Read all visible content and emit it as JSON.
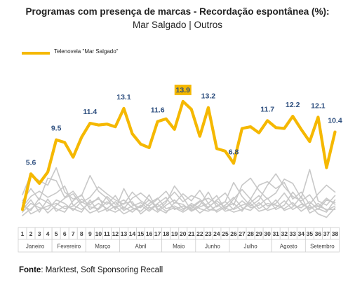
{
  "title": "Programas com presença de marcas - Recordação espontânea (%):",
  "subtitle": "Mar Salgado | Outros",
  "legend_label": "Telenovela \"Mar Salgado\"",
  "source_prefix": "Fonte",
  "source_text": ": Marktest, Soft Sponsoring Recall",
  "colors": {
    "main": "#f5b800",
    "others": "#c8c8c8",
    "label": "#2e4f7f",
    "highlight_bg": "#f5b800"
  },
  "chart_data": {
    "type": "line",
    "title": "Programas com presença de marcas - Recordação espontânea (%):",
    "subtitle": "Mar Salgado | Outros",
    "x": [
      "1",
      "2",
      "3",
      "4",
      "5",
      "6",
      "7",
      "8",
      "9",
      "10",
      "11",
      "12",
      "13",
      "14",
      "15",
      "16",
      "17",
      "18",
      "19",
      "20",
      "21",
      "22",
      "23",
      "24",
      "25",
      "26",
      "27",
      "28",
      "29",
      "30",
      "31",
      "32",
      "33",
      "34",
      "35",
      "36",
      "37",
      "38"
    ],
    "month_groups": [
      {
        "label": "Janeiro",
        "start": 1,
        "end": 4
      },
      {
        "label": "Fevereiro",
        "start": 5,
        "end": 8
      },
      {
        "label": "Março",
        "start": 9,
        "end": 12
      },
      {
        "label": "Abril",
        "start": 13,
        "end": 17
      },
      {
        "label": "Maio",
        "start": 18,
        "end": 21
      },
      {
        "label": "Junho",
        "start": 22,
        "end": 25
      },
      {
        "label": "Julho",
        "start": 26,
        "end": 30
      },
      {
        "label": "Agosto",
        "start": 31,
        "end": 34
      },
      {
        "label": "Setembro",
        "start": 35,
        "end": 38
      }
    ],
    "ylim": [
      0,
      15.5
    ],
    "grid": false,
    "legend": "top-left",
    "series": [
      {
        "name": "Telenovela \"Mar Salgado\"",
        "role": "main",
        "values": [
          1.5,
          5.6,
          4.5,
          5.8,
          9.5,
          9.2,
          7.5,
          9.8,
          11.4,
          11.2,
          11.3,
          11.0,
          13.1,
          10.2,
          9.0,
          8.6,
          11.6,
          11.9,
          10.7,
          13.9,
          13.0,
          9.9,
          13.2,
          8.5,
          8.2,
          6.8,
          10.8,
          11.0,
          10.3,
          11.7,
          10.9,
          10.8,
          12.2,
          10.7,
          9.3,
          12.1,
          6.3,
          10.4
        ],
        "data_labels": [
          {
            "x": "2",
            "value": "5.6"
          },
          {
            "x": "5",
            "value": "9.5"
          },
          {
            "x": "9",
            "value": "11.4"
          },
          {
            "x": "13",
            "value": "13.1"
          },
          {
            "x": "17",
            "value": "11.6"
          },
          {
            "x": "20",
            "value": "13.9",
            "highlight": true
          },
          {
            "x": "23",
            "value": "13.2"
          },
          {
            "x": "26",
            "value": "6.8"
          },
          {
            "x": "30",
            "value": "11.7"
          },
          {
            "x": "33",
            "value": "12.2"
          },
          {
            "x": "36",
            "value": "12.1"
          },
          {
            "x": "38",
            "value": "10.4"
          }
        ]
      },
      {
        "role": "other",
        "values": [
          3.2,
          5.5,
          4.8,
          4.3,
          6.3,
          3.5,
          2.7,
          3.1,
          5.4,
          3.6,
          2.8,
          1.5,
          3.9,
          2.1,
          1.7,
          3.2,
          1.4,
          2.3,
          4.2,
          2.9,
          1.4,
          2.0,
          3.5,
          1.8,
          2.4,
          4.6,
          3.0,
          1.9,
          2.6,
          4.3,
          5.6,
          4.1,
          3.0,
          2.5,
          3.2,
          1.8,
          2.8,
          2.1
        ]
      },
      {
        "role": "other",
        "values": [
          2.5,
          3.9,
          2.6,
          5.1,
          4.8,
          2.9,
          3.6,
          2.3,
          2.9,
          4.1,
          3.3,
          2.6,
          2.1,
          3.5,
          2.5,
          1.9,
          2.7,
          3.6,
          2.2,
          3.3,
          2.5,
          3.7,
          2.2,
          3.1,
          1.5,
          2.7,
          3.8,
          2.7,
          4.3,
          4.7,
          3.9,
          4.6,
          2.7,
          3.5,
          2.1,
          3.3,
          4.3,
          3.5
        ]
      },
      {
        "role": "other",
        "values": [
          1.8,
          3.0,
          3.6,
          2.9,
          3.4,
          4.2,
          2.0,
          1.5,
          2.3,
          2.7,
          2.1,
          3.1,
          1.6,
          2.8,
          3.4,
          2.6,
          1.8,
          2.5,
          3.5,
          2.4,
          3.1,
          2.7,
          1.7,
          2.6,
          3.4,
          2.0,
          4.3,
          5.1,
          3.7,
          2.7,
          3.4,
          5.0,
          4.5,
          2.8,
          6.1,
          2.5,
          2.0,
          3.1
        ]
      },
      {
        "role": "other",
        "values": [
          1.2,
          2.2,
          1.7,
          1.5,
          2.6,
          2.2,
          1.4,
          2.4,
          1.8,
          1.6,
          3.0,
          2.1,
          2.6,
          1.7,
          1.3,
          2.2,
          2.8,
          1.6,
          1.9,
          1.4,
          2.2,
          1.6,
          1.3,
          1.9,
          2.4,
          1.5,
          2.0,
          2.3,
          3.1,
          1.9,
          2.2,
          3.4,
          2.0,
          1.7,
          2.4,
          1.5,
          2.6,
          2.3
        ]
      },
      {
        "role": "other",
        "values": [
          2.0,
          1.4,
          2.8,
          2.3,
          1.6,
          1.2,
          2.5,
          3.2,
          1.5,
          2.2,
          1.6,
          2.4,
          1.4,
          1.9,
          2.3,
          1.5,
          2.2,
          2.9,
          1.5,
          1.9,
          1.6,
          2.4,
          2.8,
          2.2,
          1.3,
          1.6,
          2.5,
          1.7,
          2.0,
          2.8,
          1.5,
          2.0,
          3.5,
          2.3,
          1.5,
          2.2,
          1.4,
          1.9
        ]
      },
      {
        "role": "other",
        "values": [
          0.8,
          1.6,
          2.3,
          1.1,
          2.0,
          2.8,
          3.3,
          2.0,
          1.1,
          1.5,
          2.4,
          1.7,
          2.2,
          2.4,
          1.0,
          1.8,
          1.2,
          2.0,
          2.6,
          1.6,
          2.0,
          1.1,
          1.8,
          2.5,
          1.7,
          1.2,
          1.5,
          2.2,
          1.3,
          1.6,
          2.6,
          1.4,
          1.8,
          3.0,
          1.1,
          1.6,
          1.2,
          2.6
        ]
      },
      {
        "role": "other",
        "values": [
          1.5,
          2.6,
          1.2,
          2.7,
          1.3,
          1.9,
          1.6,
          1.2,
          2.6,
          1.2,
          1.6,
          1.2,
          1.8,
          1.2,
          2.0,
          1.3,
          2.1,
          1.3,
          1.7,
          1.2,
          1.8,
          2.5,
          1.5,
          1.4,
          2.0,
          2.9,
          1.7,
          1.4,
          2.3,
          1.4,
          1.7,
          2.5,
          1.5,
          2.1,
          1.7,
          1.9,
          1.5,
          1.5
        ]
      },
      {
        "role": "other",
        "values": [
          2.3,
          1.0,
          1.5,
          1.9,
          2.2,
          1.6,
          1.9,
          2.7,
          2.0,
          2.9,
          1.3,
          1.9,
          1.0,
          1.5,
          1.8,
          2.6,
          1.6,
          1.1,
          2.3,
          2.1,
          1.3,
          1.8,
          2.2,
          1.2,
          1.8,
          2.2,
          1.3,
          2.7,
          1.6,
          2.2,
          2.0,
          1.6,
          2.3,
          1.3,
          2.0,
          1.0,
          0.6,
          1.7
        ]
      }
    ]
  }
}
